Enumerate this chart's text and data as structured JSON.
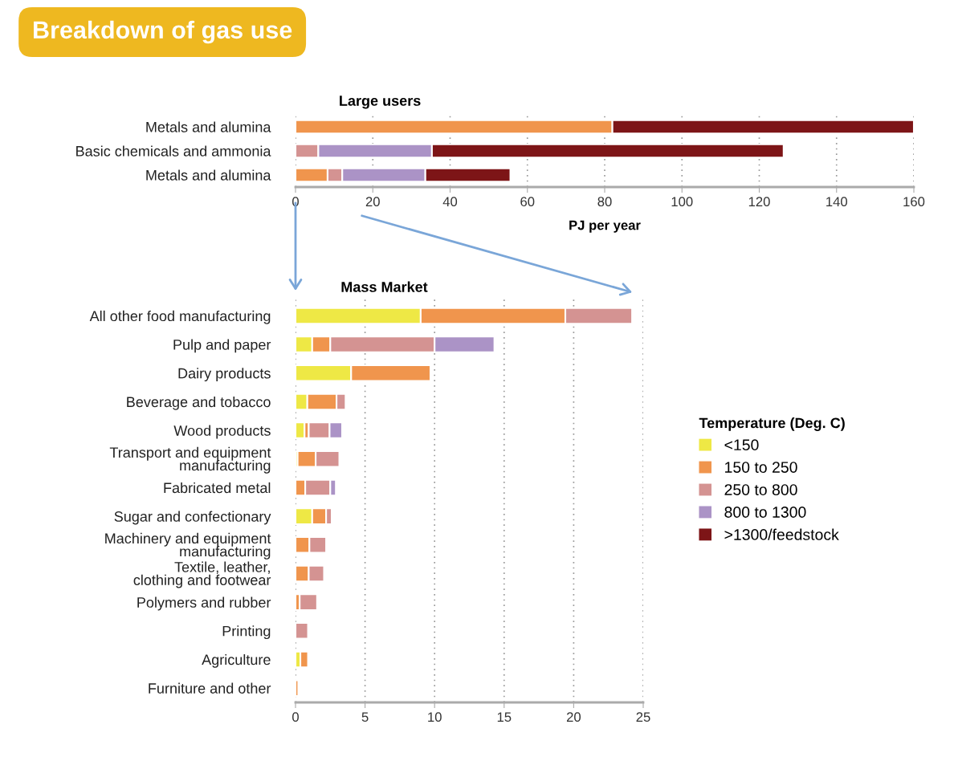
{
  "chart_data": [
    {
      "type": "bar",
      "orientation": "horizontal",
      "stacked": true,
      "title": "Breakdown of gas use",
      "subtitle": "Large users",
      "xlabel": "PJ per year",
      "categories": [
        "Metals and alumina",
        "Basic chemicals and ammonia",
        "Metals and alumina"
      ],
      "series": [
        {
          "color": "#f0954d",
          "values": [
            82,
            null,
            8.3
          ]
        },
        {
          "color": "#d49392",
          "values": [
            null,
            5.9,
            3.8
          ]
        },
        {
          "color": "#ab93c6",
          "values": [
            null,
            29.4,
            21.5
          ]
        },
        {
          "color": "#7d1517",
          "values": [
            78,
            91,
            22
          ]
        }
      ],
      "xlim": [
        0,
        160
      ],
      "xticks": [
        0,
        20,
        40,
        60,
        80,
        100,
        120,
        140,
        160
      ],
      "grid": "x",
      "legend": false
    },
    {
      "type": "bar",
      "orientation": "horizontal",
      "stacked": true,
      "title": "Mass Market",
      "legend_title": "Temperature (Deg. C)",
      "categories": [
        "All other food manufacturing",
        "Pulp and paper",
        "Dairy products",
        "Beverage and tobacco",
        "Wood products",
        "Transport and equipment\nmanufacturing",
        "Fabricated metal",
        "Sugar and confectionary",
        "Machinery and equipment\nmanufacturing",
        "Textile, leather,\nclothing and footwear",
        "Polymers and rubber",
        "Printing",
        "Agriculture",
        "Furniture and other"
      ],
      "series": [
        {
          "name": "<150",
          "color": "#eee845",
          "values": [
            9.0,
            1.2,
            4.0,
            0.85,
            0.65,
            0.15,
            null,
            1.2,
            null,
            null,
            null,
            null,
            0.35,
            null
          ]
        },
        {
          "name": "150 to 250",
          "color": "#f0954d",
          "values": [
            10.4,
            1.3,
            5.7,
            2.1,
            0.3,
            1.3,
            0.7,
            1.0,
            1.0,
            0.95,
            0.3,
            null,
            0.55,
            0.2
          ]
        },
        {
          "name": "250 to 800",
          "color": "#d49392",
          "values": [
            4.8,
            7.5,
            null,
            0.65,
            1.5,
            1.7,
            1.8,
            0.4,
            1.2,
            1.1,
            1.25,
            0.9,
            null,
            null
          ]
        },
        {
          "name": "800 to 1300",
          "color": "#ab93c6",
          "values": [
            null,
            4.3,
            null,
            null,
            0.9,
            null,
            0.4,
            null,
            null,
            null,
            null,
            null,
            null,
            null
          ]
        },
        {
          "name": ">1300/feedstock",
          "color": "#7d1517",
          "values": [
            null,
            null,
            null,
            null,
            null,
            null,
            null,
            null,
            null,
            null,
            null,
            null,
            null,
            null
          ]
        }
      ],
      "xlim": [
        0,
        25
      ],
      "xticks": [
        0,
        5,
        10,
        15,
        20,
        25
      ],
      "grid": "x",
      "legend": "right"
    }
  ]
}
